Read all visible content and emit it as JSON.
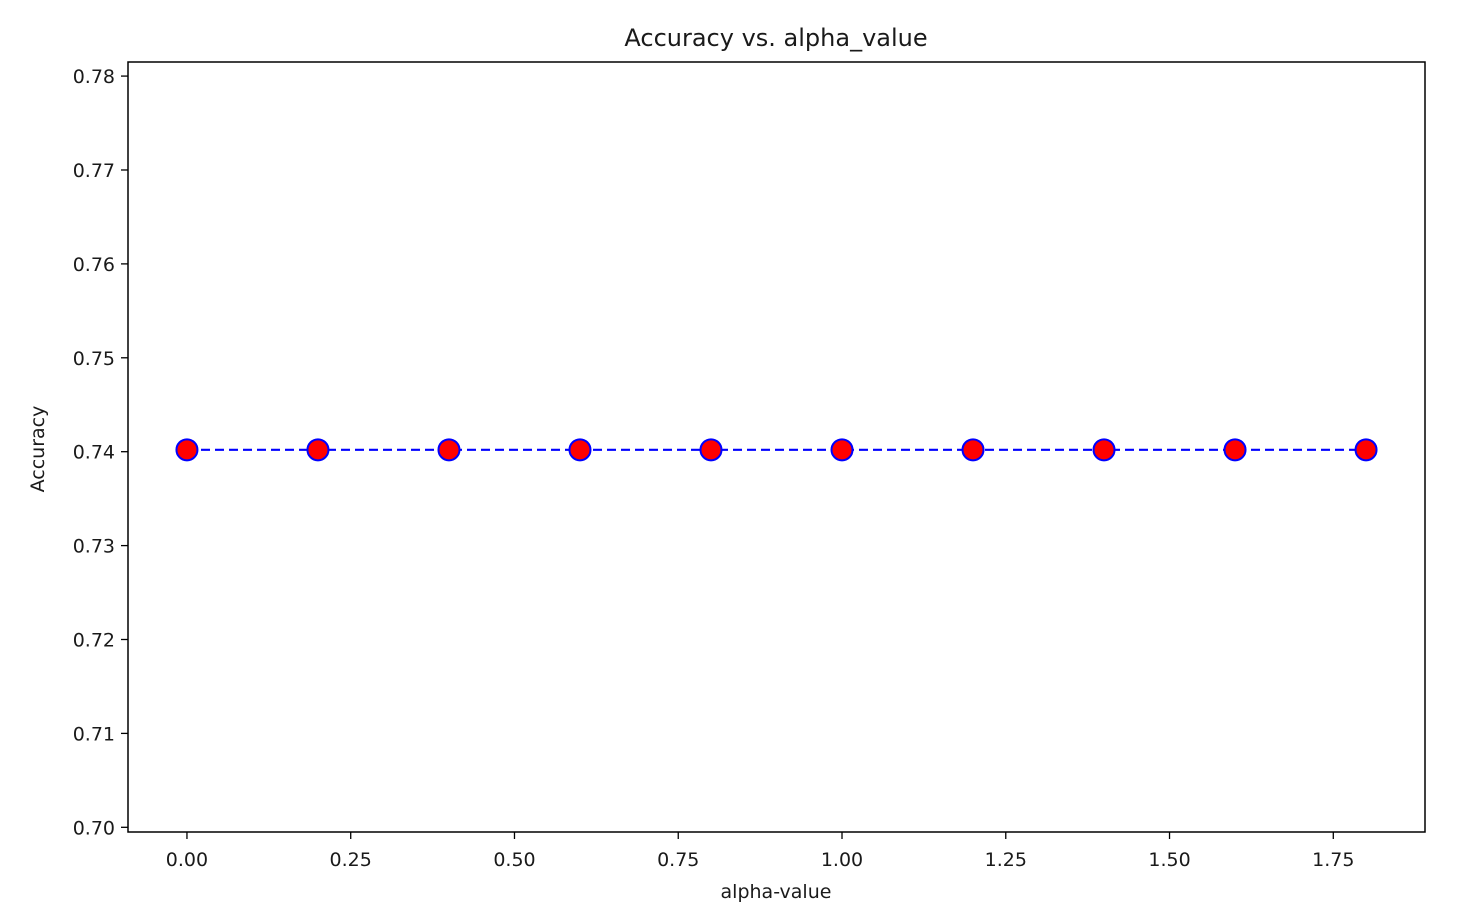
{
  "chart_data": {
    "type": "line",
    "title": "Accuracy vs. alpha_value",
    "xlabel": "alpha-value",
    "ylabel": "Accuracy",
    "xlim": [
      -0.09,
      1.89
    ],
    "ylim": [
      0.6995,
      0.7815
    ],
    "xticks": [
      0.0,
      0.25,
      0.5,
      0.75,
      1.0,
      1.25,
      1.5,
      1.75
    ],
    "xtick_labels": [
      "0.00",
      "0.25",
      "0.50",
      "0.75",
      "1.00",
      "1.25",
      "1.50",
      "1.75"
    ],
    "yticks": [
      0.7,
      0.71,
      0.72,
      0.73,
      0.74,
      0.75,
      0.76,
      0.77,
      0.78
    ],
    "ytick_labels": [
      "0.70",
      "0.71",
      "0.72",
      "0.73",
      "0.74",
      "0.75",
      "0.76",
      "0.77",
      "0.78"
    ],
    "grid": false,
    "series": [
      {
        "x": [
          0.0,
          0.2,
          0.4,
          0.6,
          0.8,
          1.0,
          1.2,
          1.4,
          1.6,
          1.8
        ],
        "y": [
          0.7402,
          0.7402,
          0.7402,
          0.7402,
          0.7402,
          0.7402,
          0.7402,
          0.7402,
          0.7402,
          0.7402
        ],
        "line_color": "#0000ff",
        "line_style": "dashed",
        "marker": "circle",
        "marker_face_color": "#ff0000",
        "marker_edge_color": "#0000ff"
      }
    ]
  }
}
